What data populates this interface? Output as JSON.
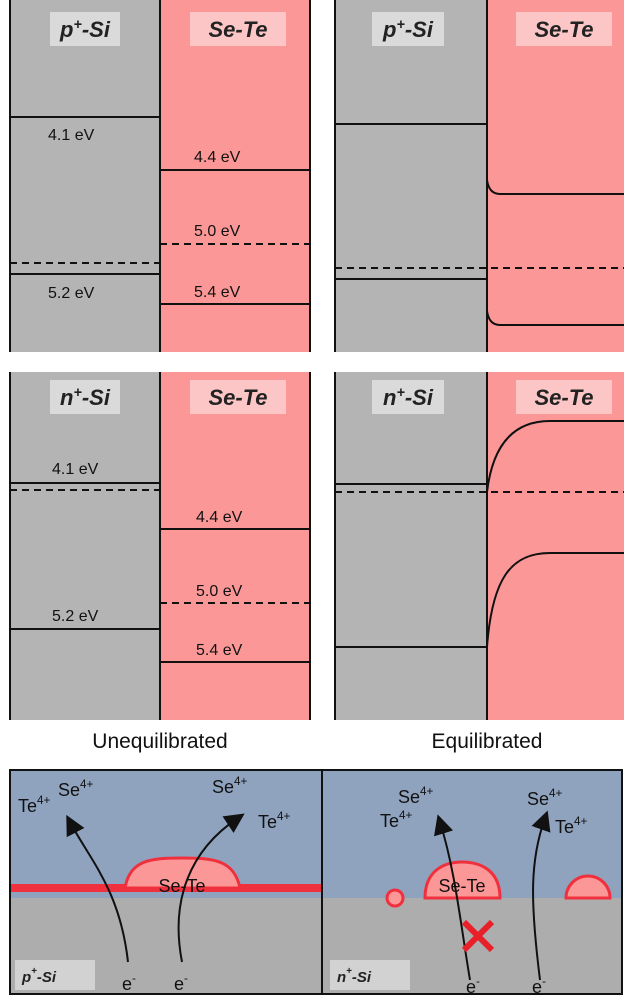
{
  "panels": [
    {
      "semiconductor": {
        "base": "p",
        "sup": "+",
        "rest": "-Si"
      },
      "film": "Se-Te",
      "levels": [
        "4.1 eV",
        "5.2 eV",
        "4.4 eV",
        "5.0 eV",
        "5.4 eV"
      ]
    },
    {
      "semiconductor": {
        "base": "p",
        "sup": "+",
        "rest": "-Si"
      },
      "film": "Se-Te"
    },
    {
      "semiconductor": {
        "base": "n",
        "sup": "+",
        "rest": "-Si"
      },
      "film": "Se-Te",
      "levels": [
        "4.1 eV",
        "5.2 eV",
        "4.4 eV",
        "5.0 eV",
        "5.4 eV"
      ]
    },
    {
      "semiconductor": {
        "base": "n",
        "sup": "+",
        "rest": "-Si"
      },
      "film": "Se-Te"
    }
  ],
  "captions": [
    "Unequilibrated",
    "Equilibrated"
  ],
  "schematics": [
    {
      "ions": [
        {
          "base": "Te",
          "sup": "4+"
        },
        {
          "base": "Se",
          "sup": "4+"
        },
        {
          "base": "Se",
          "sup": "4+"
        },
        {
          "base": "Te",
          "sup": "4+"
        }
      ],
      "deposit": "Se-Te",
      "electrons": [
        {
          "base": "e",
          "sup": "-"
        },
        {
          "base": "e",
          "sup": "-"
        }
      ],
      "substrate": {
        "base": "p",
        "sup": "+",
        "rest": "-Si"
      }
    },
    {
      "ions": [
        {
          "base": "Se",
          "sup": "4+"
        },
        {
          "base": "Te",
          "sup": "4+"
        },
        {
          "base": "Se",
          "sup": "4+"
        },
        {
          "base": "Te",
          "sup": "4+"
        }
      ],
      "deposit": "Se-Te",
      "electrons": [
        {
          "base": "e",
          "sup": "-"
        },
        {
          "base": "e",
          "sup": "-"
        }
      ],
      "substrate": {
        "base": "n",
        "sup": "+",
        "rest": "-Si"
      }
    }
  ]
}
